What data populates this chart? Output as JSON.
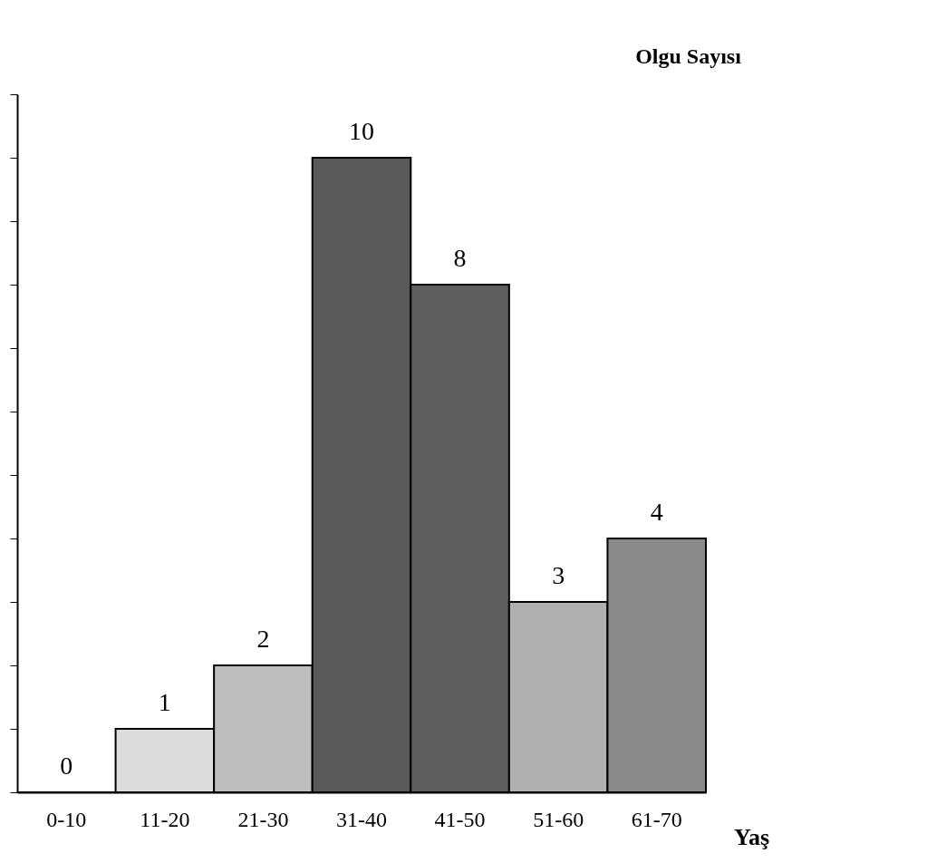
{
  "chart_data": {
    "type": "bar",
    "xlabel": "Yaş",
    "ylabel": "Olgu Sayısı",
    "categories": [
      "0-10",
      "11-20",
      "21-30",
      "31-40",
      "41-50",
      "51-60",
      "61-70"
    ],
    "values": [
      0,
      1,
      2,
      10,
      8,
      3,
      4
    ],
    "colors": [
      "#ffffff",
      "#dcdcdc",
      "#bdbdbd",
      "#5a5a5a",
      "#5e5e5e",
      "#b0b0b0",
      "#8a8a8a"
    ],
    "ylim": [
      0,
      11
    ],
    "yticks": [
      {
        "value": 0,
        "label": null
      },
      {
        "value": 1,
        "label": null
      },
      {
        "value": 2,
        "label": null
      },
      {
        "value": 3,
        "label": null
      },
      {
        "value": 4,
        "label": null
      },
      {
        "value": 5,
        "label": null
      },
      {
        "value": 6,
        "label": null
      },
      {
        "value": 7,
        "label": null
      },
      {
        "value": 8,
        "label": null
      },
      {
        "value": 9,
        "label": null
      },
      {
        "value": 10,
        "label": null
      },
      {
        "value": 11,
        "label": null
      }
    ],
    "tick_labels": "x",
    "data_labels": true,
    "grid": false
  }
}
